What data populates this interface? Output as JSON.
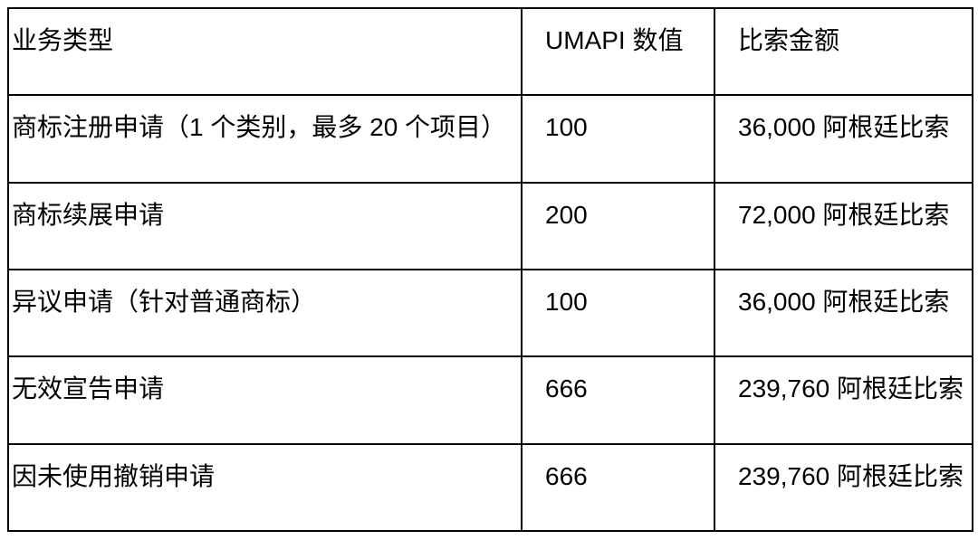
{
  "table": {
    "header": {
      "business_type": "业务类型",
      "umapi_value": "UMAPI 数值",
      "peso_amount": "比索金额"
    },
    "rows": [
      {
        "type": "商标注册申请（1 个类别，最多 20 个项目）",
        "umapi": "100",
        "pesos": "36,000 阿根廷比索"
      },
      {
        "type": "商标续展申请",
        "umapi": "200",
        "pesos": "72,000 阿根廷比索"
      },
      {
        "type": "异议申请（针对普通商标）",
        "umapi": "100",
        "pesos": "36,000 阿根廷比索"
      },
      {
        "type": "无效宣告申请",
        "umapi": "666",
        "pesos": "239,760 阿根廷比索"
      },
      {
        "type": "因未使用撤销申请",
        "umapi": "666",
        "pesos": "239,760 阿根廷比索"
      }
    ],
    "colors": {
      "border": "#000000",
      "text": "#000000",
      "background": "#ffffff"
    }
  }
}
